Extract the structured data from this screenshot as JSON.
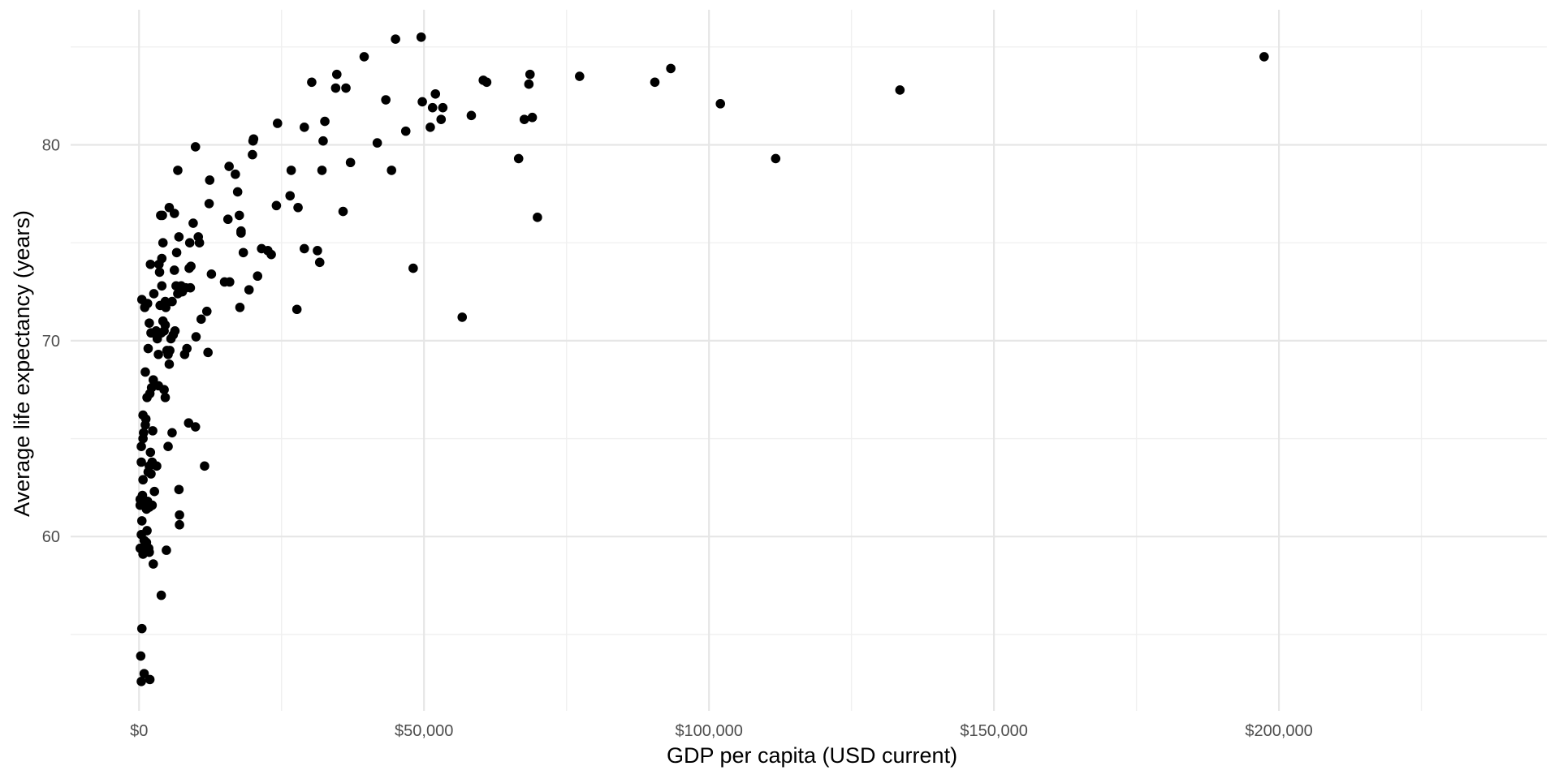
{
  "chart_data": {
    "type": "scatter",
    "title": "",
    "xlabel": "GDP per capita (USD current)",
    "ylabel": "Average life expectancy (years)",
    "xlim": [
      -12000,
      247000
    ],
    "ylim": [
      51.1,
      86.9
    ],
    "x_ticks": [
      {
        "value": 0,
        "label": "$0"
      },
      {
        "value": 50000,
        "label": "$50,000"
      },
      {
        "value": 100000,
        "label": "$100,000"
      },
      {
        "value": 150000,
        "label": "$150,000"
      },
      {
        "value": 200000,
        "label": "$200,000"
      }
    ],
    "x_minor_ticks": [
      25000,
      75000,
      125000,
      175000,
      225000
    ],
    "y_ticks": [
      {
        "value": 60,
        "label": "60"
      },
      {
        "value": 70,
        "label": "70"
      },
      {
        "value": 80,
        "label": "80"
      }
    ],
    "y_minor_ticks": [
      55,
      65,
      75,
      85
    ],
    "grid": true,
    "legend": "none",
    "point_color": "#000000",
    "series": [
      {
        "points": [
          [
            45000,
            85.4
          ],
          [
            49500,
            85.5
          ],
          [
            39500,
            84.5
          ],
          [
            34700,
            83.6
          ],
          [
            30300,
            83.2
          ],
          [
            34500,
            82.9
          ],
          [
            36300,
            82.9
          ],
          [
            43300,
            82.3
          ],
          [
            49700,
            82.2
          ],
          [
            52000,
            82.6
          ],
          [
            51500,
            81.9
          ],
          [
            53300,
            81.9
          ],
          [
            53000,
            81.3
          ],
          [
            58300,
            81.5
          ],
          [
            60400,
            83.3
          ],
          [
            61000,
            83.2
          ],
          [
            68600,
            83.6
          ],
          [
            68400,
            83.1
          ],
          [
            77300,
            83.5
          ],
          [
            90500,
            83.2
          ],
          [
            93300,
            83.9
          ],
          [
            197400,
            84.5
          ],
          [
            133500,
            82.8
          ],
          [
            102000,
            82.1
          ],
          [
            111700,
            79.3
          ],
          [
            66600,
            79.3
          ],
          [
            67600,
            81.3
          ],
          [
            69000,
            81.4
          ],
          [
            51100,
            80.9
          ],
          [
            46800,
            80.7
          ],
          [
            41800,
            80.1
          ],
          [
            32600,
            81.2
          ],
          [
            29000,
            80.9
          ],
          [
            24300,
            81.1
          ],
          [
            32300,
            80.2
          ],
          [
            20100,
            80.3
          ],
          [
            20000,
            80.2
          ],
          [
            19900,
            79.5
          ],
          [
            37100,
            79.1
          ],
          [
            44300,
            78.7
          ],
          [
            32100,
            78.7
          ],
          [
            26700,
            78.7
          ],
          [
            69900,
            76.3
          ],
          [
            35800,
            76.6
          ],
          [
            27900,
            76.8
          ],
          [
            26500,
            77.4
          ],
          [
            24100,
            76.9
          ],
          [
            56700,
            71.2
          ],
          [
            48100,
            73.7
          ],
          [
            31700,
            74.0
          ],
          [
            31300,
            74.6
          ],
          [
            29000,
            74.7
          ],
          [
            27700,
            71.6
          ],
          [
            23200,
            74.4
          ],
          [
            22600,
            74.6
          ],
          [
            21500,
            74.7
          ],
          [
            20800,
            73.3
          ],
          [
            19300,
            72.6
          ],
          [
            18300,
            74.5
          ],
          [
            17700,
            71.7
          ],
          [
            17900,
            75.6
          ],
          [
            17900,
            75.5
          ],
          [
            17600,
            76.4
          ],
          [
            17300,
            77.6
          ],
          [
            16900,
            78.5
          ],
          [
            15800,
            78.9
          ],
          [
            15600,
            76.2
          ],
          [
            15900,
            73.0
          ],
          [
            15000,
            73.0
          ],
          [
            12700,
            73.4
          ],
          [
            12400,
            78.2
          ],
          [
            12300,
            77.0
          ],
          [
            11900,
            71.5
          ],
          [
            10900,
            71.1
          ],
          [
            10400,
            75.3
          ],
          [
            10600,
            75.0
          ],
          [
            9900,
            79.9
          ],
          [
            9500,
            76.0
          ],
          [
            9100,
            73.8
          ],
          [
            8800,
            73.7
          ],
          [
            8900,
            75.0
          ],
          [
            9000,
            72.7
          ],
          [
            8200,
            72.7
          ],
          [
            7400,
            72.8
          ],
          [
            6800,
            72.4
          ],
          [
            7600,
            72.5
          ],
          [
            6500,
            72.8
          ],
          [
            6200,
            73.6
          ],
          [
            5800,
            72.0
          ],
          [
            4600,
            72.0
          ],
          [
            4700,
            71.7
          ],
          [
            3700,
            71.8
          ],
          [
            6200,
            76.5
          ],
          [
            5300,
            76.8
          ],
          [
            4100,
            76.4
          ],
          [
            3800,
            76.4
          ],
          [
            4200,
            75.0
          ],
          [
            4000,
            74.2
          ],
          [
            3500,
            73.9
          ],
          [
            3600,
            73.5
          ],
          [
            4000,
            72.8
          ],
          [
            6600,
            74.5
          ],
          [
            7000,
            75.3
          ],
          [
            6800,
            78.7
          ],
          [
            2000,
            73.9
          ],
          [
            2600,
            72.4
          ],
          [
            1500,
            71.9
          ],
          [
            1000,
            71.7
          ],
          [
            500,
            72.1
          ],
          [
            1800,
            70.9
          ],
          [
            2100,
            70.4
          ],
          [
            2600,
            70.4
          ],
          [
            3000,
            70.5
          ],
          [
            3200,
            70.1
          ],
          [
            3900,
            70.4
          ],
          [
            4200,
            71.0
          ],
          [
            4600,
            70.8
          ],
          [
            4400,
            70.5
          ],
          [
            5600,
            70.1
          ],
          [
            6000,
            70.3
          ],
          [
            6300,
            70.5
          ],
          [
            4900,
            69.5
          ],
          [
            5100,
            69.3
          ],
          [
            5400,
            69.5
          ],
          [
            3400,
            69.3
          ],
          [
            1600,
            69.6
          ],
          [
            5300,
            68.8
          ],
          [
            8000,
            69.3
          ],
          [
            8400,
            69.6
          ],
          [
            10000,
            70.2
          ],
          [
            12100,
            69.4
          ],
          [
            1100,
            68.4
          ],
          [
            2500,
            68.0
          ],
          [
            2200,
            67.6
          ],
          [
            1900,
            67.3
          ],
          [
            1400,
            67.1
          ],
          [
            3400,
            67.7
          ],
          [
            4400,
            67.5
          ],
          [
            4600,
            67.1
          ],
          [
            700,
            66.2
          ],
          [
            1200,
            66.0
          ],
          [
            1100,
            65.7
          ],
          [
            800,
            65.3
          ],
          [
            700,
            65.0
          ],
          [
            2400,
            65.4
          ],
          [
            5800,
            65.3
          ],
          [
            8700,
            65.8
          ],
          [
            9900,
            65.6
          ],
          [
            5100,
            64.6
          ],
          [
            400,
            64.6
          ],
          [
            2000,
            64.3
          ],
          [
            1800,
            63.6
          ],
          [
            2300,
            63.8
          ],
          [
            3100,
            63.6
          ],
          [
            11500,
            63.6
          ],
          [
            400,
            63.8
          ],
          [
            1600,
            63.3
          ],
          [
            2100,
            63.2
          ],
          [
            700,
            62.9
          ],
          [
            2700,
            62.3
          ],
          [
            7000,
            62.4
          ],
          [
            600,
            62.1
          ],
          [
            200,
            61.9
          ],
          [
            800,
            61.8
          ],
          [
            1500,
            61.8
          ],
          [
            1800,
            61.5
          ],
          [
            2300,
            61.6
          ],
          [
            1300,
            61.4
          ],
          [
            200,
            61.6
          ],
          [
            7100,
            61.1
          ],
          [
            7100,
            60.6
          ],
          [
            500,
            60.8
          ],
          [
            1400,
            60.3
          ],
          [
            400,
            60.1
          ],
          [
            900,
            59.8
          ],
          [
            1300,
            59.7
          ],
          [
            1700,
            59.4
          ],
          [
            200,
            59.4
          ],
          [
            900,
            59.2
          ],
          [
            4800,
            59.3
          ],
          [
            2500,
            58.6
          ],
          [
            700,
            59.1
          ],
          [
            1800,
            59.2
          ],
          [
            3900,
            57.0
          ],
          [
            500,
            55.3
          ],
          [
            300,
            53.9
          ],
          [
            900,
            53.0
          ],
          [
            400,
            52.6
          ],
          [
            1900,
            52.7
          ]
        ]
      }
    ]
  }
}
